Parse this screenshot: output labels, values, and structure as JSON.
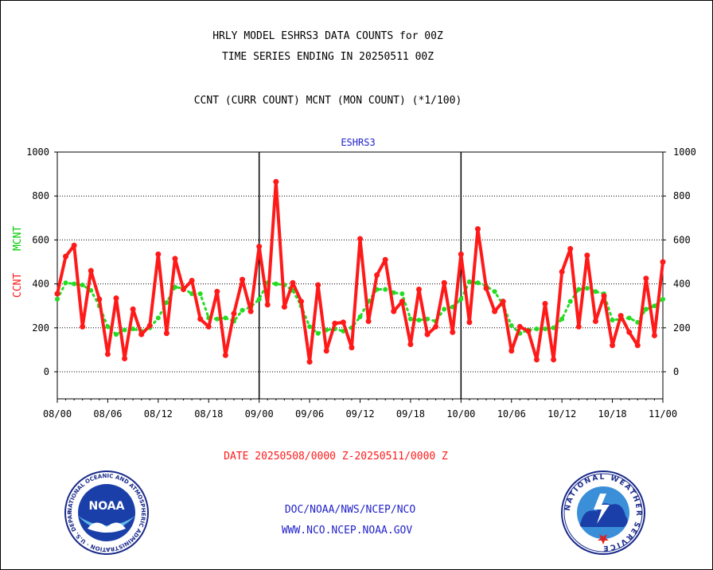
{
  "header": {
    "title_line1": "HRLY MODEL ESHRS3 DATA COUNTS for 00Z",
    "title_line2": "TIME SERIES ENDING IN 20250511 00Z",
    "subtitle": "CCNT (CURR COUNT) MCNT (MON COUNT) (*1/100)"
  },
  "footer": {
    "date_range": "DATE 20250508/0000 Z-20250511/0000 Z",
    "org_line": "DOC/NOAA/NWS/NCEP/NCO",
    "url_line": "WWW.NCO.NCEP.NOAA.GOV"
  },
  "logos": {
    "noaa_text": "NOAA",
    "noaa_ring": "NATIONAL OCEANIC AND ATMOSPHERIC ADMINISTRATION · U.S. DEPARTMENT OF COMMERCE",
    "nws_ring": "NATIONAL WEATHER SERVICE"
  },
  "colors": {
    "ccnt": "#ff1a1a",
    "mcnt": "#22dd22",
    "grid": "#000000",
    "panel_title": "#2222cc"
  },
  "chart_data": {
    "type": "line",
    "title": "ESHRS3",
    "ylabel_parts": [
      "CCNT",
      "MCNT"
    ],
    "ylim": [
      -120,
      1000
    ],
    "yticks": [
      0,
      200,
      400,
      600,
      800,
      1000
    ],
    "y_right_axis": true,
    "grid": "horizontal dotted at y ticks; solid vertical lines at day boundaries",
    "xlim": [
      0,
      72
    ],
    "xticks": [
      {
        "x": 0,
        "label": "08/00"
      },
      {
        "x": 6,
        "label": "08/06"
      },
      {
        "x": 12,
        "label": "08/12"
      },
      {
        "x": 18,
        "label": "08/18"
      },
      {
        "x": 24,
        "label": "09/00"
      },
      {
        "x": 30,
        "label": "09/06"
      },
      {
        "x": 36,
        "label": "09/12"
      },
      {
        "x": 42,
        "label": "09/18"
      },
      {
        "x": 48,
        "label": "10/00"
      },
      {
        "x": 54,
        "label": "10/06"
      },
      {
        "x": 60,
        "label": "10/12"
      },
      {
        "x": 66,
        "label": "10/18"
      },
      {
        "x": 72,
        "label": "11/00"
      }
    ],
    "day_boundaries": [
      24,
      48
    ],
    "series": [
      {
        "name": "CCNT",
        "color": "#ff1a1a",
        "values": [
          355,
          525,
          575,
          205,
          460,
          330,
          80,
          335,
          60,
          285,
          170,
          210,
          535,
          175,
          515,
          375,
          415,
          240,
          205,
          365,
          75,
          265,
          420,
          275,
          570,
          305,
          865,
          295,
          405,
          320,
          45,
          395,
          95,
          220,
          225,
          110,
          605,
          230,
          440,
          510,
          275,
          320,
          125,
          375,
          170,
          205,
          405,
          180,
          535,
          225,
          650,
          380,
          275,
          320,
          95,
          205,
          185,
          55,
          310,
          55,
          455,
          560,
          205,
          530,
          230,
          345,
          120,
          255,
          180,
          120,
          425,
          165,
          500
        ]
      },
      {
        "name": "MCNT",
        "color": "#22dd22",
        "values": [
          330,
          405,
          400,
          395,
          370,
          300,
          205,
          170,
          190,
          195,
          185,
          200,
          245,
          315,
          385,
          380,
          355,
          355,
          245,
          240,
          245,
          230,
          280,
          295,
          330,
          405,
          400,
          395,
          370,
          300,
          205,
          175,
          190,
          195,
          185,
          200,
          250,
          320,
          375,
          375,
          360,
          355,
          240,
          235,
          240,
          230,
          285,
          295,
          330,
          410,
          405,
          390,
          365,
          305,
          210,
          175,
          190,
          195,
          195,
          200,
          240,
          320,
          375,
          380,
          365,
          355,
          235,
          240,
          245,
          225,
          285,
          300,
          330
        ]
      }
    ]
  }
}
